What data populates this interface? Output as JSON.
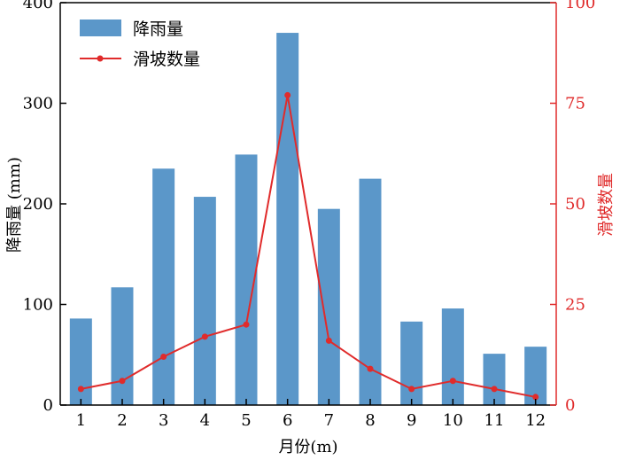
{
  "chart_data": {
    "type": "bar+line",
    "categories": [
      "1",
      "2",
      "3",
      "4",
      "5",
      "6",
      "7",
      "8",
      "9",
      "10",
      "11",
      "12"
    ],
    "xlabel": "月份(m)",
    "series": [
      {
        "name": "降雨量",
        "type": "bar",
        "axis": "left",
        "values": [
          86,
          117,
          235,
          207,
          249,
          370,
          195,
          225,
          83,
          96,
          51,
          58
        ]
      },
      {
        "name": "滑坡数量",
        "type": "line",
        "axis": "right",
        "values": [
          4,
          6,
          12,
          17,
          20,
          77,
          16,
          9,
          4,
          6,
          4,
          2
        ]
      }
    ],
    "y_left": {
      "label": "降雨量 (mm)",
      "range": [
        0,
        400
      ],
      "ticks": [
        0,
        100,
        200,
        300,
        400
      ]
    },
    "y_right": {
      "label": "滑坡数量",
      "range": [
        0,
        100
      ],
      "ticks": [
        0,
        25,
        50,
        75,
        100
      ]
    },
    "legend_position": "top-left",
    "grid": false,
    "colors": {
      "bar": "#5b97c9",
      "line": "#e02b2b",
      "right_axis": "#e02b2b",
      "axis": "#000000"
    }
  }
}
